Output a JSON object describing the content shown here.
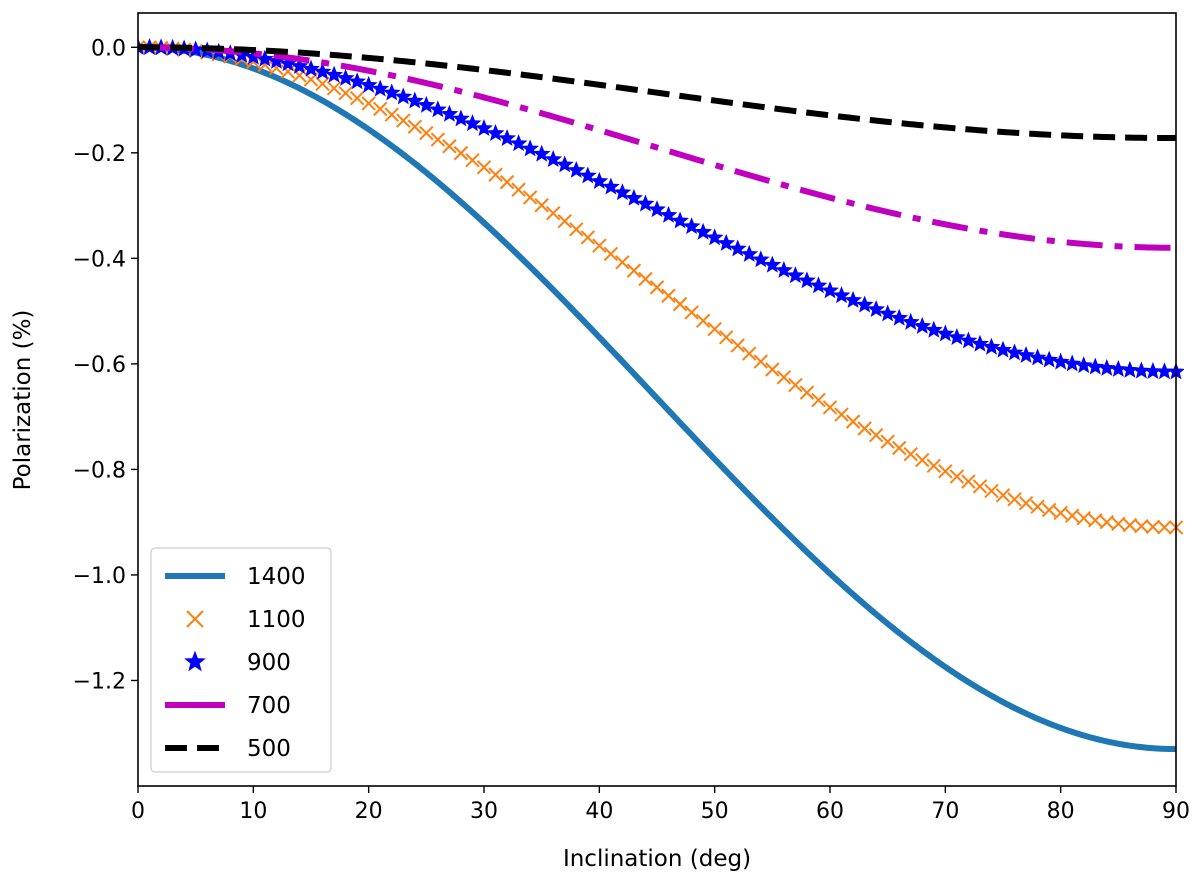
{
  "chart_data": {
    "type": "line",
    "title": "",
    "xlabel": "Inclination (deg)",
    "ylabel": "Polarization (%)",
    "xlim": [
      0,
      90
    ],
    "ylim": [
      -1.4,
      0.065
    ],
    "xticks": [
      0,
      10,
      20,
      30,
      40,
      50,
      60,
      70,
      80,
      90
    ],
    "xtick_labels": [
      "0",
      "10",
      "20",
      "30",
      "40",
      "50",
      "60",
      "70",
      "80",
      "90"
    ],
    "yticks": [
      0.0,
      -0.2,
      -0.4,
      -0.6,
      -0.8,
      -1.0,
      -1.2
    ],
    "ytick_labels": [
      "0.0",
      "−0.2",
      "−0.4",
      "−0.6",
      "−0.8",
      "−1.0",
      "−1.2"
    ],
    "grid": false,
    "legend_position": "lower-left",
    "series": [
      {
        "name": "1400",
        "label": "1400",
        "amplitude": -1.33,
        "color": "#1f77b4",
        "style": "solid"
      },
      {
        "name": "1100",
        "label": "1100",
        "amplitude": -0.91,
        "color": "#ff7f0e",
        "style": "x-marker"
      },
      {
        "name": "900",
        "label": "900",
        "amplitude": -0.615,
        "color": "#0000ff",
        "style": "star-marker"
      },
      {
        "name": "700",
        "label": "700",
        "amplitude": -0.38,
        "color": "#bf00bf",
        "style": "dashdot"
      },
      {
        "name": "500",
        "label": "500",
        "amplitude": -0.172,
        "color": "#000000",
        "style": "dashed"
      }
    ],
    "curve_model": "y = amplitude * sin^2(x)"
  }
}
